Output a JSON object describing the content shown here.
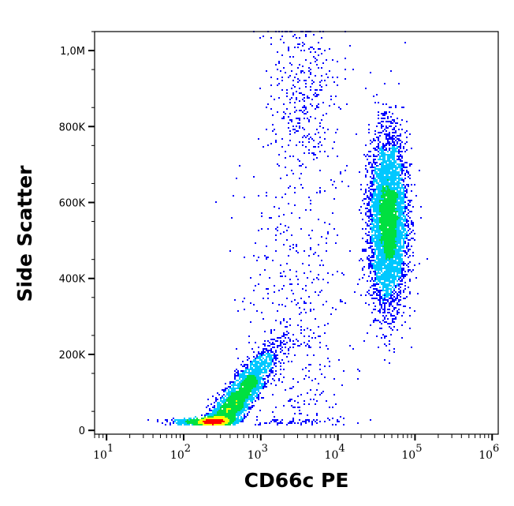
{
  "chart_data": {
    "type": "scatter",
    "subtype": "density-dot-plot",
    "xlabel": "CD66c PE",
    "ylabel": "Side Scatter",
    "xscale": "log",
    "xlim": [
      7,
      1200000
    ],
    "ylim": [
      -10000,
      1050000
    ],
    "x_ticks": [
      {
        "value": 10,
        "label": "10",
        "exp": "1"
      },
      {
        "value": 100,
        "label": "10",
        "exp": "2"
      },
      {
        "value": 1000,
        "label": "10",
        "exp": "3"
      },
      {
        "value": 10000,
        "label": "10",
        "exp": "4"
      },
      {
        "value": 100000,
        "label": "10",
        "exp": "5"
      },
      {
        "value": 1000000,
        "label": "10",
        "exp": "6"
      }
    ],
    "y_ticks": [
      {
        "value": 0,
        "label": "0"
      },
      {
        "value": 200000,
        "label": "200K"
      },
      {
        "value": 400000,
        "label": "400K"
      },
      {
        "value": 600000,
        "label": "600K"
      },
      {
        "value": 800000,
        "label": "800K"
      },
      {
        "value": 1000000,
        "label": "1,0M"
      }
    ],
    "grid": false,
    "legend": "none",
    "colormap": [
      "#0000ff",
      "#00c8ff",
      "#00e040",
      "#ffff00",
      "#ff0000"
    ],
    "populations": [
      {
        "x_center": 400,
        "x_log_sd": 0.28,
        "y_center": 55000,
        "y_sd": 30000,
        "slope": 70000,
        "count": 4500
      },
      {
        "x_center": 45000,
        "x_log_sd": 0.12,
        "y_center": 550000,
        "y_sd": 110000,
        "slope": 0,
        "count": 5500
      },
      {
        "x_center": 3000,
        "x_log_sd": 0.35,
        "y_center": 300000,
        "y_sd": 250000,
        "slope": 0,
        "count": 500
      },
      {
        "x_center": 3500,
        "x_log_sd": 0.22,
        "y_center": 870000,
        "y_sd": 110000,
        "slope": 0,
        "count": 350
      }
    ]
  }
}
